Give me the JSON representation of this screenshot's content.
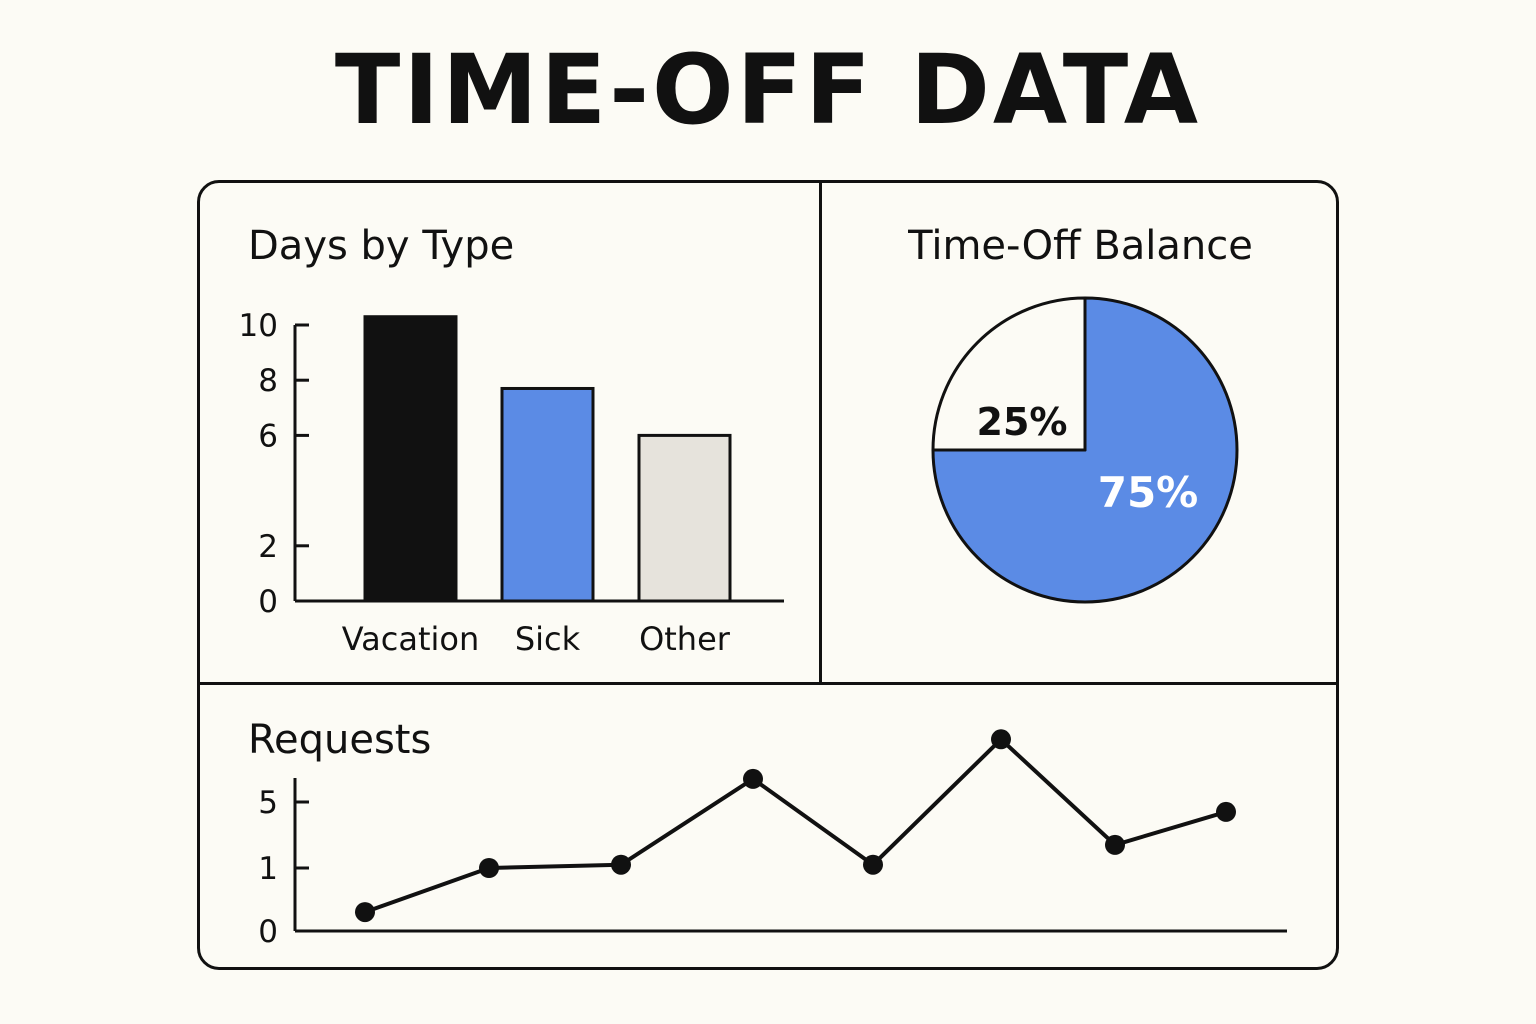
{
  "title": "TIME-OFF DATA",
  "colors": {
    "background": "#fcfbf5",
    "ink": "#111111",
    "accent_blue": "#5b8be5",
    "light_gray": "#e6e3dc"
  },
  "chart_data": [
    {
      "type": "bar",
      "title": "Days by Type",
      "categories": [
        "Vacation",
        "Sick",
        "Other"
      ],
      "values": [
        10.3,
        7.7,
        6
      ],
      "colors": [
        "#111111",
        "#5b8be5",
        "#e6e3dc"
      ],
      "yticks": [
        0,
        2,
        6,
        8,
        10
      ],
      "ylim": [
        0,
        10
      ],
      "grid": false
    },
    {
      "type": "pie",
      "title": "Time-Off Balance",
      "slices": [
        {
          "label": "75%",
          "value": 75,
          "color": "#5b8be5"
        },
        {
          "label": "25%",
          "value": 25,
          "color": "#fcfbf5"
        }
      ]
    },
    {
      "type": "line",
      "title": "Requests",
      "x": [
        1,
        2,
        3,
        4,
        5,
        6,
        7,
        8
      ],
      "values": [
        0.3,
        1,
        1.2,
        6.4,
        1.2,
        8.8,
        2.4,
        4.4
      ],
      "yticks": [
        {
          "label": "0",
          "value": 0
        },
        {
          "label": "1",
          "value": 1
        },
        {
          "label": "5",
          "value": 5
        }
      ],
      "grid": false
    }
  ]
}
